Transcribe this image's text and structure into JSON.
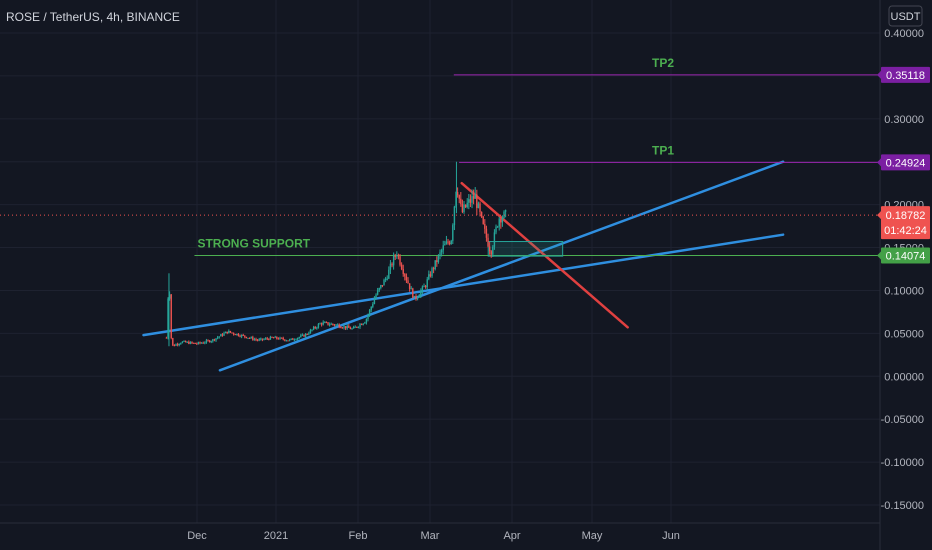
{
  "header": {
    "title": "ROSE / TetherUS, 4h, BINANCE",
    "currency": "USDT"
  },
  "colors": {
    "background": "#131722",
    "grid": "#1e2230",
    "up": "#26a69a",
    "down": "#ef5350",
    "trendline_blue": "#2f8fe0",
    "trendline_red": "#e04040",
    "support_green": "#4caf50",
    "target_purple": "#9c27b0",
    "current_price": "#ef5350"
  },
  "chart_data": {
    "type": "candlestick",
    "title": "ROSE / TetherUS, 4h, BINANCE",
    "x_ticks": [
      "Dec",
      "2021",
      "Feb",
      "Mar",
      "Apr",
      "May",
      "Jun"
    ],
    "y_ticks": [
      "0.40000",
      "0.35000",
      "0.30000",
      "0.25000",
      "0.20000",
      "0.15000",
      "0.10000",
      "0.05000",
      "0.00000",
      "-0.05000",
      "-0.10000",
      "-0.15000"
    ],
    "y_values": [
      0.4,
      0.35,
      0.3,
      0.25,
      0.2,
      0.15,
      0.1,
      0.05,
      0.0,
      -0.05,
      -0.1,
      -0.15
    ],
    "ylim": [
      -0.162,
      0.42
    ],
    "grid": true,
    "price_path": [
      [
        "2020-11-19",
        0.045
      ],
      [
        "2020-11-20",
        0.12
      ],
      [
        "2020-11-21",
        0.035
      ],
      [
        "2020-11-25",
        0.04
      ],
      [
        "2020-12-01",
        0.038
      ],
      [
        "2020-12-07",
        0.042
      ],
      [
        "2020-12-13",
        0.052
      ],
      [
        "2020-12-19",
        0.047
      ],
      [
        "2020-12-25",
        0.042
      ],
      [
        "2020-12-31",
        0.045
      ],
      [
        "2021-01-06",
        0.042
      ],
      [
        "2021-01-12",
        0.048
      ],
      [
        "2021-01-18",
        0.062
      ],
      [
        "2021-01-24",
        0.06
      ],
      [
        "2021-01-30",
        0.055
      ],
      [
        "2021-02-04",
        0.065
      ],
      [
        "2021-02-08",
        0.095
      ],
      [
        "2021-02-12",
        0.115
      ],
      [
        "2021-02-16",
        0.145
      ],
      [
        "2021-02-19",
        0.12
      ],
      [
        "2021-02-23",
        0.09
      ],
      [
        "2021-02-27",
        0.105
      ],
      [
        "2021-03-02",
        0.125
      ],
      [
        "2021-03-06",
        0.15
      ],
      [
        "2021-03-09",
        0.16
      ],
      [
        "2021-03-11",
        0.225
      ],
      [
        "2021-03-13",
        0.19
      ],
      [
        "2021-03-15",
        0.2
      ],
      [
        "2021-03-18",
        0.21
      ],
      [
        "2021-03-21",
        0.175
      ],
      [
        "2021-03-24",
        0.145
      ],
      [
        "2021-03-27",
        0.185
      ],
      [
        "2021-03-30",
        0.18782
      ]
    ],
    "horizontal_levels": [
      {
        "label": "TP2",
        "value": 0.35118,
        "price_label": "0.35118",
        "color": "#9c27b0",
        "from": "2021-03-10"
      },
      {
        "label": "TP1",
        "value": 0.24924,
        "price_label": "0.24924",
        "color": "#9c27b0",
        "from": "2021-03-12"
      },
      {
        "label": "STRONG SUPPORT",
        "value": 0.14074,
        "price_label": "0.14074",
        "color": "#4caf50",
        "from": "2020-11-30"
      }
    ],
    "current_price": {
      "value": 0.18782,
      "price_label": "0.18782",
      "countdown": "01:42:24"
    },
    "trendlines": [
      {
        "name": "upper-blue",
        "from": [
          "2020-11-10",
          0.048
        ],
        "to": [
          "2021-07-15",
          0.165
        ],
        "color": "#2f8fe0"
      },
      {
        "name": "lower-blue",
        "from": [
          "2020-12-10",
          0.007
        ],
        "to": [
          "2021-07-15",
          0.25
        ],
        "color": "#2f8fe0"
      },
      {
        "name": "red-resistance",
        "from": [
          "2021-03-13",
          0.225
        ],
        "to": [
          "2021-05-15",
          0.057
        ],
        "color": "#e04040"
      }
    ],
    "zone": {
      "from": [
        "2021-03-23",
        0.157
      ],
      "to": [
        "2021-04-20",
        0.14
      ]
    }
  }
}
